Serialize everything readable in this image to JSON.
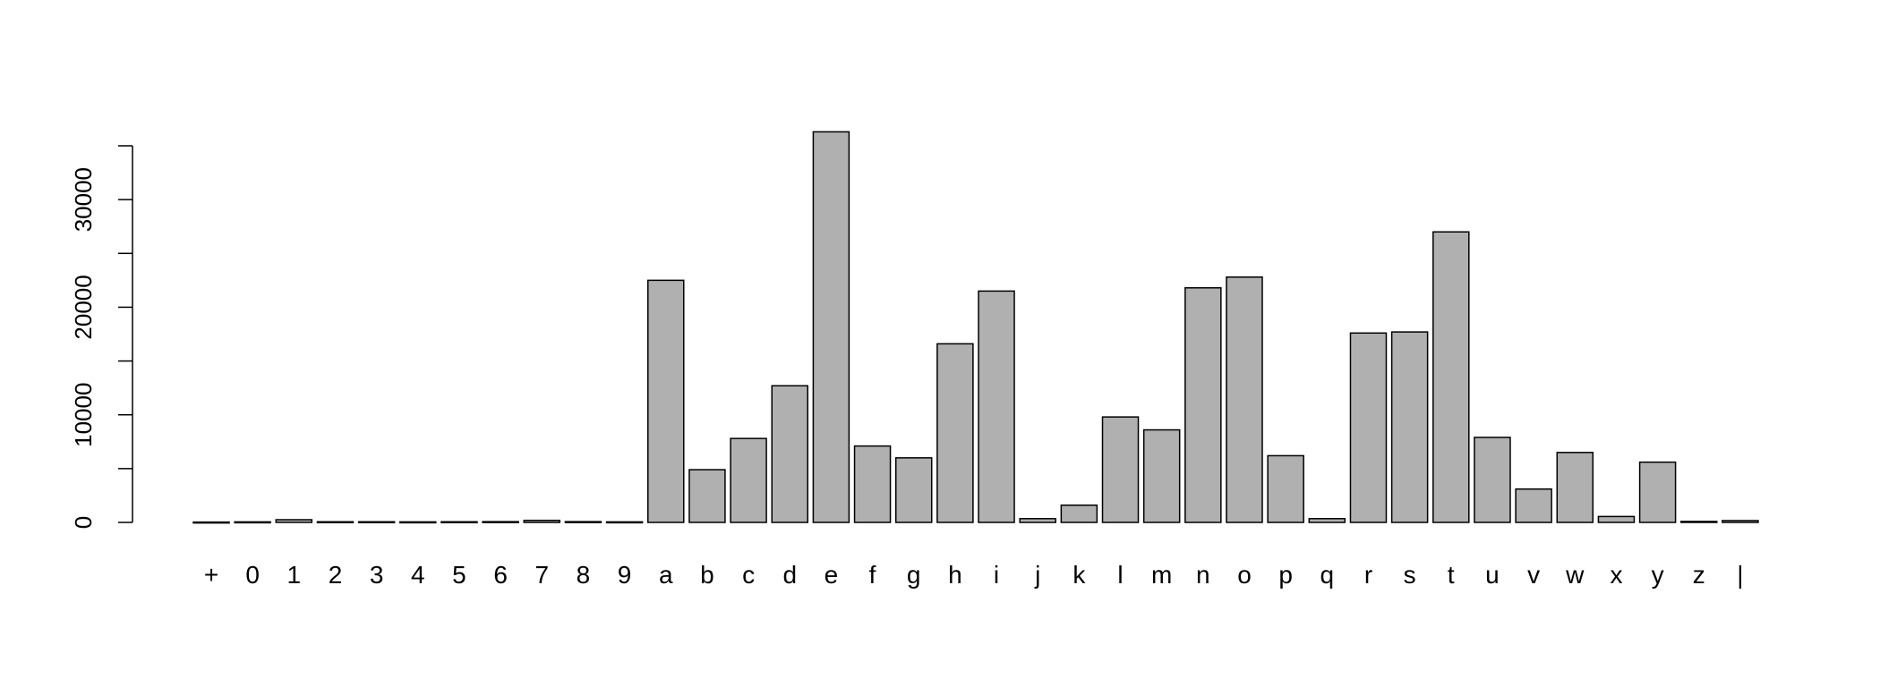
{
  "chart_data": {
    "type": "bar",
    "title": "",
    "xlabel": "",
    "ylabel": "",
    "categories": [
      "+",
      "0",
      "1",
      "2",
      "3",
      "4",
      "5",
      "6",
      "7",
      "8",
      "9",
      "a",
      "b",
      "c",
      "d",
      "e",
      "f",
      "g",
      "h",
      "i",
      "j",
      "k",
      "l",
      "m",
      "n",
      "o",
      "p",
      "q",
      "r",
      "s",
      "t",
      "u",
      "v",
      "w",
      "x",
      "y",
      "z",
      "|"
    ],
    "values": [
      30,
      50,
      250,
      60,
      60,
      50,
      60,
      70,
      190,
      70,
      50,
      22500,
      4900,
      7800,
      12700,
      36300,
      7100,
      6000,
      16600,
      21500,
      350,
      1600,
      9800,
      8600,
      21800,
      22800,
      6200,
      350,
      17600,
      17700,
      27000,
      7900,
      3100,
      6500,
      550,
      5600,
      90,
      170
    ],
    "ylim": [
      0,
      35000
    ],
    "yticks": [
      0,
      5000,
      10000,
      15000,
      20000,
      25000,
      30000,
      35000
    ],
    "ytick_labels": [
      "0",
      "10000",
      "20000",
      "30000"
    ],
    "grid": false,
    "bar_color": "#b0b0b0",
    "edge_color": "#000000"
  }
}
